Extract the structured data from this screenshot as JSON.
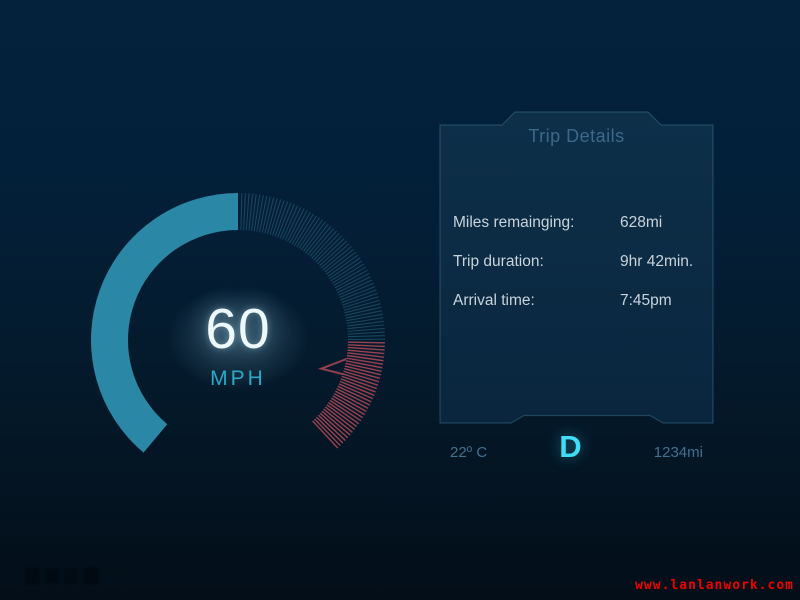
{
  "speedometer": {
    "speed": "60",
    "unit": "MPH",
    "gauge": {
      "start_angle": -140,
      "filled_to_angle": 0,
      "ticks_start_angle": 1.5,
      "red_zone_start_angle": 91,
      "end_angle": 138,
      "tick_step_deg": 1.4,
      "fill_color": "#2b87a6",
      "tick_color": "#17465f",
      "red_tick_color": "#a14451",
      "needle_color": "#93404d",
      "glow_color": "#bfe6f5"
    }
  },
  "trip_panel": {
    "title": "Trip Details",
    "rows": [
      {
        "label": "Miles remainging:",
        "value": "628mi"
      },
      {
        "label": "Trip duration:",
        "value": "9hr 42min."
      },
      {
        "label": "Arrival time:",
        "value": "7:45pm"
      }
    ],
    "footer": {
      "temperature": "22º C",
      "gear": "D",
      "odometer": "1234mi"
    },
    "panel_fill_top": "#0e3049",
    "panel_fill_bottom": "#0a2740",
    "panel_stroke": "rgba(96,158,193,0.30)"
  },
  "watermark": {
    "text": "www.lanlanwork.com",
    "color": "#ee0000"
  }
}
